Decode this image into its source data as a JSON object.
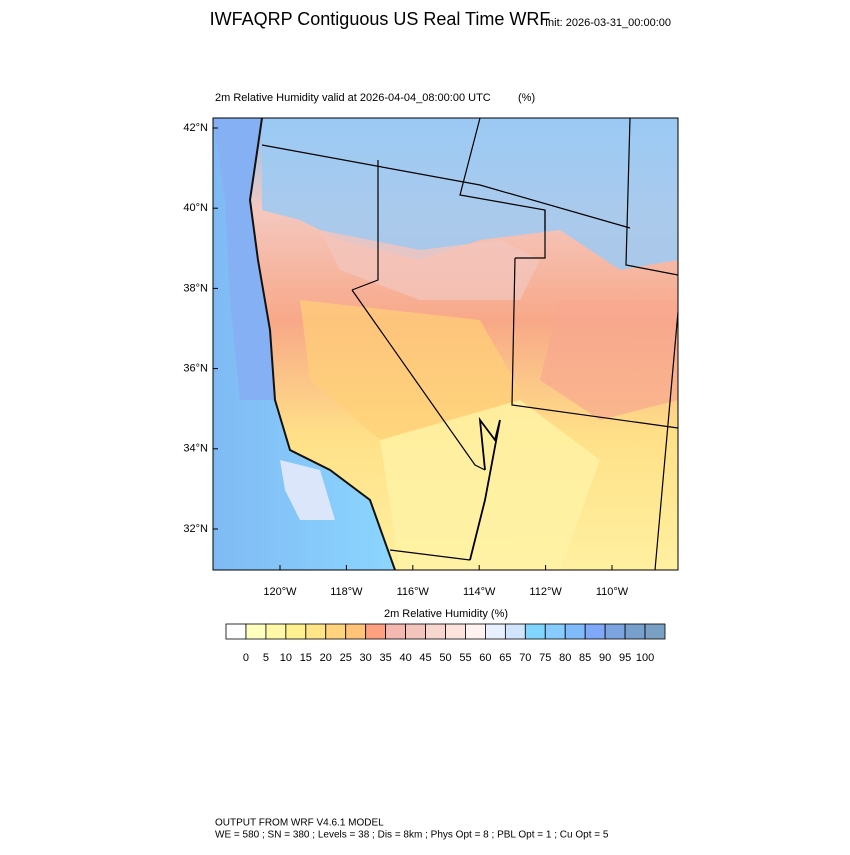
{
  "title": "IWFAQRP Contiguous US Real Time WRF",
  "init": "Init: 2026-03-31_00:00:00",
  "subtitle": "2m Relative Humidity valid at 2026-04-04_08:00:00 UTC",
  "units": "(%)",
  "lat_labels": [
    "42°N",
    "40°N",
    "38°N",
    "36°N",
    "34°N",
    "32°N"
  ],
  "lon_labels": [
    "120°W",
    "118°W",
    "116°W",
    "114°W",
    "112°W",
    "110°W"
  ],
  "colorbar": {
    "title": "2m Relative Humidity  (%)",
    "labels": [
      0,
      5,
      10,
      15,
      20,
      25,
      30,
      35,
      40,
      45,
      50,
      55,
      60,
      65,
      70,
      75,
      80,
      85,
      90,
      95,
      100
    ],
    "colors": [
      "#ffffff",
      "#ffffc0",
      "#fff8a8",
      "#fff090",
      "#ffe488",
      "#ffd47c",
      "#ffc478",
      "#ffa080",
      "#f4b8b0",
      "#f2c4bc",
      "#f6d6ce",
      "#fce4dc",
      "#fff2f0",
      "#e8f0ff",
      "#d0e4fc",
      "#80d4ff",
      "#88ccff",
      "#80bcfc",
      "#80a8f8",
      "#7ca4e0",
      "#78a0cc",
      "#7aa0c4"
    ]
  },
  "footer": [
    "OUTPUT FROM WRF V4.6.1 MODEL",
    "WE = 580 ; SN = 380 ; Levels = 38 ; Dis = 8km ; Phys Opt = 8 ; PBL Opt = 1 ; Cu Opt = 5"
  ]
}
